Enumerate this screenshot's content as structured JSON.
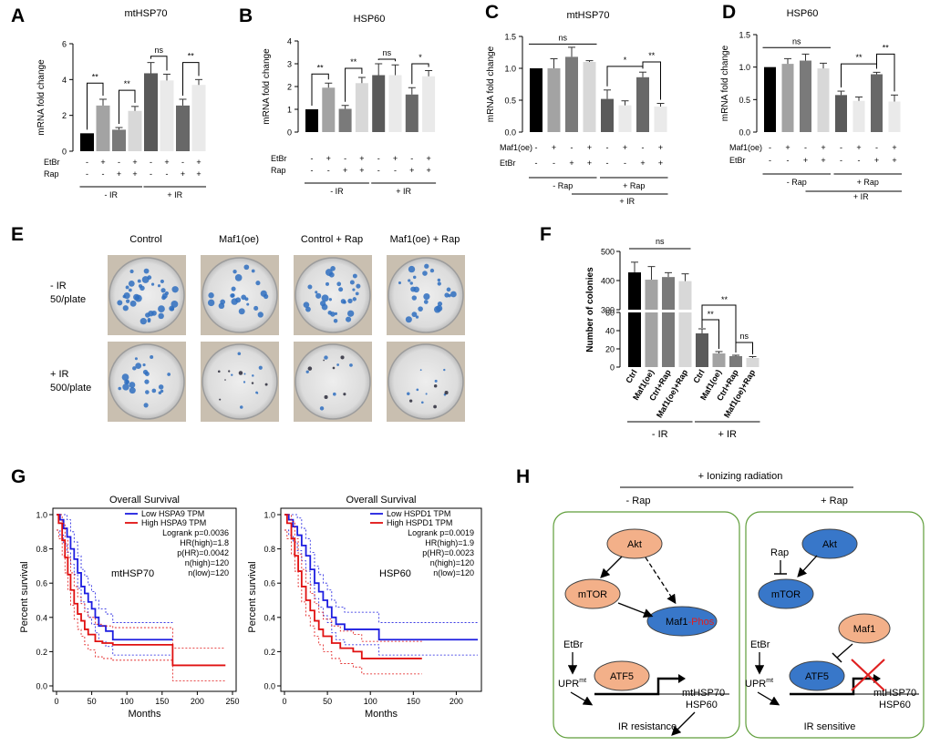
{
  "colors": {
    "c1": "#000000",
    "c2": "#a3a3a3",
    "c3": "#7a7a7a",
    "c4": "#d8d8d8",
    "c5": "#5a5a5a",
    "c6": "#eaeaea",
    "c7": "#686868",
    "blue": "#3877c9",
    "orange": "#f3b089",
    "green": "#5f9e3a"
  },
  "panels": {
    "A": "A",
    "B": "B",
    "C": "C",
    "D": "D",
    "E": "E",
    "F": "F",
    "G": "G",
    "H": "H"
  },
  "chart_data": [
    {
      "id": "A",
      "type": "bar",
      "title": "mtHSP70",
      "ylabel": "mRNA fold change",
      "ylim": [
        0,
        6
      ],
      "yticks": [
        "0",
        "2",
        "4",
        "6"
      ],
      "values": [
        1,
        2.55,
        1.2,
        2.25,
        4.35,
        3.95,
        2.55,
        3.7
      ],
      "errors": [
        0,
        0.35,
        0.12,
        0.25,
        0.6,
        0.35,
        0.35,
        0.3
      ],
      "colorKeys": [
        "c1",
        "c2",
        "c3",
        "c4",
        "c5",
        "c6",
        "c7",
        "c6"
      ],
      "rowLabels": [
        "EtBr",
        "Rap"
      ],
      "rows": [
        [
          "-",
          "+",
          "-",
          "+",
          "-",
          "+",
          "-",
          "+"
        ],
        [
          "-",
          "-",
          "+",
          "+",
          "-",
          "-",
          "+",
          "+"
        ]
      ],
      "groups": [
        {
          "label": "- IR",
          "from": 0,
          "to": 3
        },
        {
          "label": "+ IR",
          "from": 4,
          "to": 7
        }
      ],
      "sigs": [
        {
          "type": "bracket",
          "from": 0,
          "to": 1,
          "y": 3.8,
          "label": "**"
        },
        {
          "type": "bracket",
          "from": 2,
          "to": 3,
          "y": 3.4,
          "label": "**"
        },
        {
          "type": "bracket",
          "from": 4,
          "to": 5,
          "y": 5.3,
          "label": "ns"
        },
        {
          "type": "bracket",
          "from": 6,
          "to": 7,
          "y": 4.95,
          "label": "**"
        }
      ]
    },
    {
      "id": "B",
      "type": "bar",
      "title": "HSP60",
      "ylabel": "mRNA fold change",
      "ylim": [
        0,
        4
      ],
      "yticks": [
        "0",
        "1",
        "2",
        "3",
        "4"
      ],
      "values": [
        1,
        1.95,
        1.02,
        2.15,
        2.5,
        2.5,
        1.65,
        2.45
      ],
      "errors": [
        0,
        0.2,
        0.15,
        0.25,
        0.5,
        0.45,
        0.3,
        0.25
      ],
      "colorKeys": [
        "c1",
        "c2",
        "c3",
        "c4",
        "c5",
        "c6",
        "c7",
        "c6"
      ],
      "rowLabels": [
        "EtBr",
        "Rap"
      ],
      "rows": [
        [
          "-",
          "+",
          "-",
          "+",
          "-",
          "+",
          "-",
          "+"
        ],
        [
          "-",
          "-",
          "+",
          "+",
          "-",
          "-",
          "+",
          "+"
        ]
      ],
      "groups": [
        {
          "label": "- IR",
          "from": 0,
          "to": 3
        },
        {
          "label": "+ IR",
          "from": 4,
          "to": 7
        }
      ],
      "sigs": [
        {
          "type": "bracket",
          "from": 0,
          "to": 1,
          "y": 2.55,
          "label": "**"
        },
        {
          "type": "bracket",
          "from": 2,
          "to": 3,
          "y": 2.8,
          "label": "**"
        },
        {
          "type": "bracket",
          "from": 4,
          "to": 5,
          "y": 3.2,
          "label": "ns"
        },
        {
          "type": "bracket",
          "from": 6,
          "to": 7,
          "y": 3.0,
          "label": "*"
        }
      ]
    },
    {
      "id": "C",
      "type": "bar",
      "title": "mtHSP70",
      "ylabel": "mRNA fold change",
      "ylim": [
        0,
        1.5
      ],
      "yticks": [
        "0.0",
        "0.5",
        "1.0",
        "1.5"
      ],
      "values": [
        1,
        1.0,
        1.18,
        1.1,
        0.52,
        0.42,
        0.86,
        0.4
      ],
      "errors": [
        0,
        0.15,
        0.15,
        0.02,
        0.14,
        0.07,
        0.08,
        0.05
      ],
      "colorKeys": [
        "c1",
        "c2",
        "c3",
        "c4",
        "c5",
        "c6",
        "c7",
        "c6"
      ],
      "rowLabels": [
        "Maf1(oe)",
        "EtBr"
      ],
      "rows": [
        [
          "-",
          "+",
          "-",
          "+",
          "-",
          "+",
          "-",
          "+"
        ],
        [
          "-",
          "-",
          "+",
          "+",
          "-",
          "-",
          "+",
          "+"
        ]
      ],
      "groups": [
        {
          "label": "- Rap",
          "from": 0,
          "to": 3
        },
        {
          "label": "+ Rap",
          "from": 4,
          "to": 7
        }
      ],
      "outerGroup": {
        "label": "+ IR"
      },
      "sigs": [
        {
          "type": "line",
          "from": 0,
          "to": 3,
          "y": 1.38,
          "label": "ns"
        },
        {
          "type": "bracket",
          "from": 4,
          "to": 6,
          "y": 1.03,
          "label": "*"
        },
        {
          "type": "bracket",
          "from": 6,
          "to": 7,
          "y": 1.1,
          "label": "**"
        }
      ]
    },
    {
      "id": "D",
      "type": "bar",
      "title": "HSP60",
      "ylabel": "mRNA fold change",
      "ylim": [
        0,
        1.5
      ],
      "yticks": [
        "0.0",
        "0.5",
        "1.0",
        "1.5"
      ],
      "values": [
        1,
        1.05,
        1.1,
        0.98,
        0.57,
        0.48,
        0.89,
        0.47
      ],
      "errors": [
        0,
        0.08,
        0.1,
        0.08,
        0.06,
        0.06,
        0.03,
        0.1
      ],
      "colorKeys": [
        "c1",
        "c2",
        "c3",
        "c4",
        "c5",
        "c6",
        "c7",
        "c6"
      ],
      "rowLabels": [
        "Maf1(oe)",
        "EtBr"
      ],
      "rows": [
        [
          "-",
          "+",
          "-",
          "+",
          "-",
          "+",
          "-",
          "+"
        ],
        [
          "-",
          "-",
          "+",
          "+",
          "-",
          "-",
          "+",
          "+"
        ]
      ],
      "groups": [
        {
          "label": "- Rap",
          "from": 0,
          "to": 3
        },
        {
          "label": "+ Rap",
          "from": 4,
          "to": 7
        }
      ],
      "outerGroup": {
        "label": "+ IR"
      },
      "sigs": [
        {
          "type": "line",
          "from": 0,
          "to": 3,
          "y": 1.3,
          "label": "ns"
        },
        {
          "type": "bracket",
          "from": 4,
          "to": 6,
          "y": 1.05,
          "label": "**"
        },
        {
          "type": "bracket",
          "from": 6,
          "to": 7,
          "y": 1.2,
          "label": "**"
        }
      ]
    },
    {
      "id": "F",
      "type": "bar",
      "ylabel": "Number of colonies",
      "breakAxis": true,
      "lowerYlim": [
        0,
        60
      ],
      "upperYlim": [
        300,
        500
      ],
      "categories": [
        "Ctrl",
        "Maf1(oe)",
        "Ctrl+Rap",
        "Maf1(oe)+Rap",
        "Ctrl",
        "Maf1(oe)",
        "Ctrl+Rap",
        "Maf1(oe)+Rap"
      ],
      "values": [
        428,
        403,
        412,
        398,
        37,
        15,
        12,
        10
      ],
      "errors": [
        35,
        45,
        15,
        25,
        5,
        2,
        1,
        1.5
      ],
      "colorKeys": [
        "c1",
        "c2",
        "c3",
        "c4",
        "c5",
        "c2",
        "c3",
        "c4"
      ],
      "yticksUpper": [
        "500",
        "400",
        "300"
      ],
      "yticksLower": [
        "60",
        "40",
        "20",
        "0"
      ],
      "groups": [
        {
          "label": "-  IR",
          "from": 0,
          "to": 3
        },
        {
          "label": "+ IR",
          "from": 4,
          "to": 7
        }
      ],
      "sigs": [
        {
          "label": "ns",
          "text": "ns"
        },
        {
          "label": "**",
          "text": "**"
        },
        {
          "label": "**",
          "text": "**"
        },
        {
          "label": "ns",
          "text": "ns"
        }
      ]
    },
    {
      "id": "G1",
      "type": "line",
      "title": "Overall Survival",
      "xlabel": "Months",
      "ylabel": "Percent survival",
      "gene": "mtHSP70",
      "xlim": [
        0,
        250
      ],
      "ylim": [
        0,
        1
      ],
      "xticks": [
        "0",
        "50",
        "100",
        "150",
        "200",
        "250"
      ],
      "yticks": [
        "0.0",
        "0.2",
        "0.4",
        "0.6",
        "0.8",
        "1.0"
      ],
      "legend": [
        "Low HSPA9 TPM",
        "High HSPA9 TPM"
      ],
      "stats": [
        "Logrank p=0.0036",
        "HR(high)=1.8",
        "p(HR)=0.0042",
        "n(high)=120",
        "n(low)=120"
      ],
      "series": [
        {
          "name": "Low HSPA9 TPM",
          "color": "blue",
          "x": [
            0,
            5,
            10,
            15,
            20,
            25,
            30,
            35,
            40,
            45,
            50,
            55,
            60,
            70,
            80,
            90,
            100,
            165
          ],
          "y": [
            1,
            0.97,
            0.92,
            0.87,
            0.8,
            0.74,
            0.66,
            0.58,
            0.54,
            0.49,
            0.45,
            0.4,
            0.35,
            0.32,
            0.27,
            0.27,
            0.27,
            0.27
          ]
        },
        {
          "name": "High HSPA9 TPM",
          "color": "red",
          "x": [
            0,
            3,
            8,
            12,
            16,
            20,
            25,
            30,
            35,
            40,
            45,
            55,
            65,
            80,
            100,
            165,
            240
          ],
          "y": [
            1,
            0.95,
            0.85,
            0.75,
            0.65,
            0.56,
            0.48,
            0.42,
            0.38,
            0.33,
            0.3,
            0.26,
            0.25,
            0.24,
            0.24,
            0.12,
            0.12
          ]
        }
      ]
    },
    {
      "id": "G2",
      "type": "line",
      "title": "Overall Survival",
      "xlabel": "Months",
      "ylabel": "Percent survival",
      "gene": "HSP60",
      "xlim": [
        0,
        225
      ],
      "ylim": [
        0,
        1
      ],
      "xticks": [
        "0",
        "50",
        "100",
        "150",
        "200"
      ],
      "yticks": [
        "0.0",
        "0.2",
        "0.4",
        "0.6",
        "0.8",
        "1.0"
      ],
      "legend": [
        "Low HSPD1 TPM",
        "High HSPD1 TPM"
      ],
      "stats": [
        "Logrank p=0.0019",
        "HR(high)=1.9",
        "p(HR)=0.0023",
        "n(high)=120",
        "n(low)=120"
      ],
      "series": [
        {
          "name": "Low HSPD1 TPM",
          "color": "blue",
          "x": [
            0,
            5,
            10,
            15,
            20,
            25,
            30,
            35,
            40,
            45,
            50,
            55,
            60,
            70,
            80,
            110,
            225
          ],
          "y": [
            1,
            0.97,
            0.93,
            0.88,
            0.82,
            0.76,
            0.68,
            0.6,
            0.55,
            0.5,
            0.46,
            0.4,
            0.36,
            0.33,
            0.33,
            0.27,
            0.27
          ]
        },
        {
          "name": "High HSPD1 TPM",
          "color": "red",
          "x": [
            0,
            3,
            8,
            12,
            16,
            20,
            25,
            30,
            35,
            40,
            45,
            55,
            65,
            80,
            90,
            160
          ],
          "y": [
            1,
            0.95,
            0.86,
            0.76,
            0.67,
            0.58,
            0.5,
            0.44,
            0.38,
            0.33,
            0.29,
            0.25,
            0.22,
            0.2,
            0.16,
            0.16
          ]
        }
      ]
    }
  ],
  "E": {
    "cols": [
      "Control",
      "Maf1(oe)",
      "Control + Rap",
      "Maf1(oe) + Rap"
    ],
    "row1": [
      "- IR",
      "50/plate"
    ],
    "row2": [
      "+ IR",
      "500/plate"
    ]
  },
  "H": {
    "top": "+ Ionizing radiation",
    "left": "- Rap",
    "right": "+ Rap",
    "akt": "Akt",
    "mtor": "mTOR",
    "maf1": "Maf1",
    "phos": "-Phos",
    "etbr": "EtBr",
    "upr": "UPR",
    "mt": "mt",
    "atf5": "ATF5",
    "genes1": "mtHSP70",
    "genes2": "HSP60",
    "rap": "Rap",
    "resist": "IR resistance",
    "sens": "IR sensitive"
  }
}
